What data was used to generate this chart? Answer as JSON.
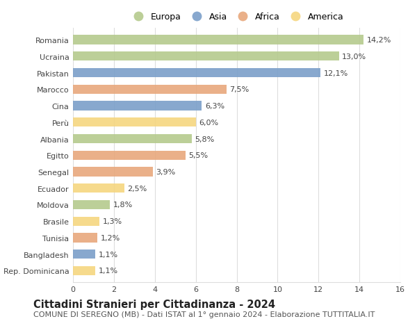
{
  "countries": [
    "Romania",
    "Ucraina",
    "Pakistan",
    "Marocco",
    "Cina",
    "Perù",
    "Albania",
    "Egitto",
    "Senegal",
    "Ecuador",
    "Moldova",
    "Brasile",
    "Tunisia",
    "Bangladesh",
    "Rep. Dominicana"
  ],
  "values": [
    14.2,
    13.0,
    12.1,
    7.5,
    6.3,
    6.0,
    5.8,
    5.5,
    3.9,
    2.5,
    1.8,
    1.3,
    1.2,
    1.1,
    1.1
  ],
  "labels": [
    "14,2%",
    "13,0%",
    "12,1%",
    "7,5%",
    "6,3%",
    "6,0%",
    "5,8%",
    "5,5%",
    "3,9%",
    "2,5%",
    "1,8%",
    "1,3%",
    "1,2%",
    "1,1%",
    "1,1%"
  ],
  "regions": [
    "Europa",
    "Europa",
    "Asia",
    "Africa",
    "Asia",
    "America",
    "Europa",
    "Africa",
    "Africa",
    "America",
    "Europa",
    "America",
    "Africa",
    "Asia",
    "America"
  ],
  "region_colors": {
    "Europa": "#b5ca8d",
    "Asia": "#7b9fc9",
    "Africa": "#e8a87c",
    "America": "#f5d680"
  },
  "legend_order": [
    "Europa",
    "Asia",
    "Africa",
    "America"
  ],
  "title": "Cittadini Stranieri per Cittadinanza - 2024",
  "subtitle": "COMUNE DI SEREGNO (MB) - Dati ISTAT al 1° gennaio 2024 - Elaborazione TUTTITALIA.IT",
  "xlim": [
    0,
    16
  ],
  "xticks": [
    0,
    2,
    4,
    6,
    8,
    10,
    12,
    14,
    16
  ],
  "background_color": "#ffffff",
  "grid_color": "#dddddd",
  "bar_height": 0.55,
  "title_fontsize": 10.5,
  "subtitle_fontsize": 8,
  "label_fontsize": 8,
  "tick_fontsize": 8,
  "legend_fontsize": 9
}
